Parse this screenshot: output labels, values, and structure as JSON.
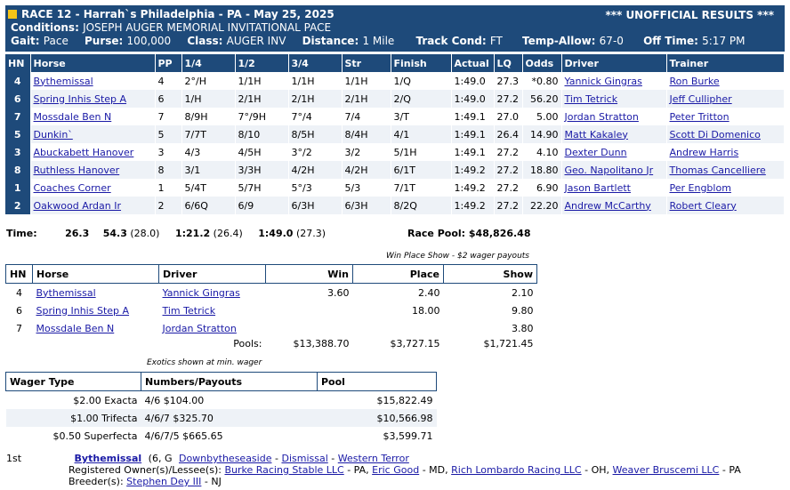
{
  "header": {
    "race": "RACE 12 - Harrah`s Philadelphia - PA - May 25, 2025",
    "unofficial": "*** UNOFFICIAL RESULTS ***",
    "conditions_label": "Conditions:",
    "conditions": "JOSEPH AUGER MEMORIAL INVITATIONAL PACE",
    "gait_label": "Gait:",
    "gait": "Pace",
    "purse_label": "Purse:",
    "purse": "100,000",
    "class_label": "Class:",
    "class": "AUGER INV",
    "distance_label": "Distance:",
    "distance": "1 Mile",
    "track_label": "Track Cond:",
    "track": "FT",
    "temp_label": "Temp-Allow:",
    "temp": "67-0",
    "off_label": "Off Time:",
    "off": "5:17 PM"
  },
  "results": {
    "columns": [
      "HN",
      "Horse",
      "PP",
      "1/4",
      "1/2",
      "3/4",
      "Str",
      "Finish",
      "Actual",
      "LQ",
      "Odds",
      "Driver",
      "Trainer"
    ],
    "rows": [
      {
        "hn": "4",
        "horse": "Bythemissal",
        "pp": "4",
        "q1": "2°/H",
        "q2": "1/1H",
        "q3": "1/1H",
        "str": "1/1H",
        "fin": "1/Q",
        "actual": "1:49.0",
        "lq": "27.3",
        "odds": "*0.80",
        "driver": "Yannick Gingras",
        "trainer": "Ron Burke"
      },
      {
        "hn": "6",
        "horse": "Spring Inhis Step A",
        "pp": "6",
        "q1": "1/H",
        "q2": "2/1H",
        "q3": "2/1H",
        "str": "2/1H",
        "fin": "2/Q",
        "actual": "1:49.0",
        "lq": "27.2",
        "odds": "56.20",
        "driver": "Tim Tetrick",
        "trainer": "Jeff Cullipher"
      },
      {
        "hn": "7",
        "horse": "Mossdale Ben N",
        "pp": "7",
        "q1": "8/9H",
        "q2": "7°/9H",
        "q3": "7°/4",
        "str": "7/4",
        "fin": "3/T",
        "actual": "1:49.1",
        "lq": "27.0",
        "odds": "5.00",
        "driver": "Jordan Stratton",
        "trainer": "Peter Tritton"
      },
      {
        "hn": "5",
        "horse": "Dunkin`",
        "pp": "5",
        "q1": "7/7T",
        "q2": "8/10",
        "q3": "8/5H",
        "str": "8/4H",
        "fin": "4/1",
        "actual": "1:49.1",
        "lq": "26.4",
        "odds": "14.90",
        "driver": "Matt Kakaley",
        "trainer": "Scott Di Domenico"
      },
      {
        "hn": "3",
        "horse": "Abuckabett Hanover",
        "pp": "3",
        "q1": "4/3",
        "q2": "4/5H",
        "q3": "3°/2",
        "str": "3/2",
        "fin": "5/1H",
        "actual": "1:49.1",
        "lq": "27.2",
        "odds": "4.10",
        "driver": "Dexter Dunn",
        "trainer": "Andrew Harris"
      },
      {
        "hn": "8",
        "horse": "Ruthless Hanover",
        "pp": "8",
        "q1": "3/1",
        "q2": "3/3H",
        "q3": "4/2H",
        "str": "4/2H",
        "fin": "6/1T",
        "actual": "1:49.2",
        "lq": "27.2",
        "odds": "18.80",
        "driver": "Geo. Napolitano Jr",
        "trainer": "Thomas Cancelliere"
      },
      {
        "hn": "1",
        "horse": "Coaches Corner",
        "pp": "1",
        "q1": "5/4T",
        "q2": "5/7H",
        "q3": "5°/3",
        "str": "5/3",
        "fin": "7/1T",
        "actual": "1:49.2",
        "lq": "27.2",
        "odds": "6.90",
        "driver": "Jason Bartlett",
        "trainer": "Per Engblom"
      },
      {
        "hn": "2",
        "horse": "Oakwood Ardan Ir",
        "pp": "2",
        "q1": "6/6Q",
        "q2": "6/9",
        "q3": "6/3H",
        "str": "6/3H",
        "fin": "8/2Q",
        "actual": "1:49.2",
        "lq": "27.2",
        "odds": "22.20",
        "driver": "Andrew McCarthy",
        "trainer": "Robert Cleary"
      }
    ]
  },
  "times": {
    "label": "Time:",
    "t1": "26.3",
    "t2": "54.3",
    "t2s": "(28.0)",
    "t3": "1:21.2",
    "t3s": "(26.4)",
    "t4": "1:49.0",
    "t4s": "(27.3)",
    "pool_label": "Race Pool:",
    "pool": "$48,826.48"
  },
  "wps": {
    "caption": "Win Place Show - $2 wager payouts",
    "columns": [
      "HN",
      "Horse",
      "Driver",
      "Win",
      "Place",
      "Show"
    ],
    "rows": [
      {
        "hn": "4",
        "horse": "Bythemissal",
        "driver": "Yannick Gingras",
        "win": "3.60",
        "place": "2.40",
        "show": "2.10"
      },
      {
        "hn": "6",
        "horse": "Spring Inhis Step A",
        "driver": "Tim Tetrick",
        "win": "",
        "place": "18.00",
        "show": "9.80"
      },
      {
        "hn": "7",
        "horse": "Mossdale Ben N",
        "driver": "Jordan Stratton",
        "win": "",
        "place": "",
        "show": "3.80"
      }
    ],
    "pools_label": "Pools:",
    "pool_win": "$13,388.70",
    "pool_place": "$3,727.15",
    "pool_show": "$1,721.45"
  },
  "exotics": {
    "caption": "Exotics shown at min. wager",
    "columns": [
      "Wager Type",
      "Numbers/Payouts",
      "Pool"
    ],
    "rows": [
      {
        "type": "$2.00 Exacta",
        "payout": "4/6 $104.00",
        "pool": "$15,822.49"
      },
      {
        "type": "$1.00 Trifecta",
        "payout": "4/6/7 $325.70",
        "pool": "$10,566.98"
      },
      {
        "type": "$0.50 Superfecta",
        "payout": "4/6/7/5 $665.65",
        "pool": "$3,599.71"
      }
    ]
  },
  "footer": {
    "place": "1st",
    "winner": "Bythemissal",
    "winner_info": "(6, G",
    "sire": "Downbytheseaside",
    "dam": "Dismissal",
    "damsire": "Western Terror",
    "dash": "-",
    "owners_label": "Registered Owner(s)/Lessee(s):",
    "owner1": "Burke Racing Stable LLC",
    "owner1_loc": "- PA,",
    "owner2": "Eric Good",
    "owner2_loc": "- MD,",
    "owner3": "Rich Lombardo Racing LLC",
    "owner3_loc": "- OH,",
    "owner4": "Weaver Bruscemi LLC",
    "owner4_loc": "- PA",
    "breeder_label": "Breeder(s):",
    "breeder": "Stephen Dey III",
    "breeder_loc": "- NJ"
  }
}
